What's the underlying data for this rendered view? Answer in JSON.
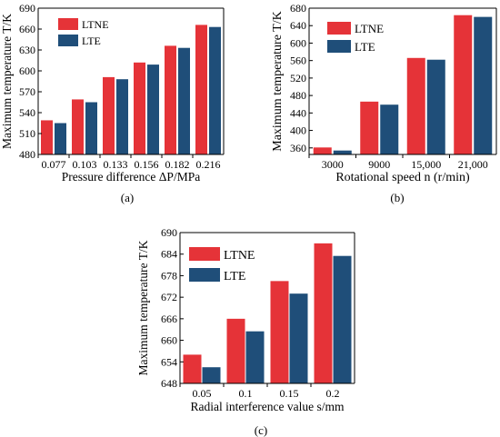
{
  "colors": {
    "ltne": "#e53338",
    "lte": "#1f4e79"
  },
  "chart_data": [
    {
      "type": "bar",
      "caption": "(a)",
      "categories": [
        "0.077",
        "0.103",
        "0.133",
        "0.156",
        "0.182",
        "0.216"
      ],
      "series": [
        {
          "name": "LTNE",
          "values": [
            529,
            559,
            591,
            612,
            636,
            666
          ]
        },
        {
          "name": "LTE",
          "values": [
            525,
            555,
            588,
            609,
            633,
            663
          ]
        }
      ],
      "xlabel": "Pressure difference ΔP/MPa",
      "ylabel": "Maximum temperature T/K",
      "ylim": [
        480,
        690
      ],
      "yticks": [
        480,
        510,
        540,
        570,
        600,
        630,
        660,
        690
      ],
      "legend": "top-left"
    },
    {
      "type": "bar",
      "caption": "(b)",
      "categories": [
        "3000",
        "9000",
        "15,000",
        "21,000"
      ],
      "series": [
        {
          "name": "LTNE",
          "values": [
            361,
            466,
            566,
            664
          ]
        },
        {
          "name": "LTE",
          "values": [
            354,
            459,
            562,
            660
          ]
        }
      ],
      "xlabel": "Rotational speed n (r/min)",
      "ylabel": "Maximum temperature T/K",
      "ylim": [
        345,
        680
      ],
      "yticks": [
        360,
        400,
        440,
        480,
        520,
        560,
        600,
        640,
        680
      ],
      "legend": "top-left"
    },
    {
      "type": "bar",
      "caption": "(c)",
      "categories": [
        "0.05",
        "0.1",
        "0.15",
        "0.2"
      ],
      "series": [
        {
          "name": "LTNE",
          "values": [
            656,
            666,
            676.5,
            687
          ]
        },
        {
          "name": "LTE",
          "values": [
            652.5,
            662.5,
            673,
            683.5
          ]
        }
      ],
      "xlabel": "Radial interference value s/mm",
      "ylabel": "Maximum temperature T/K",
      "ylim": [
        648,
        690
      ],
      "yticks": [
        648,
        654,
        660,
        666,
        672,
        678,
        684,
        690
      ],
      "legend": "top-left"
    }
  ]
}
